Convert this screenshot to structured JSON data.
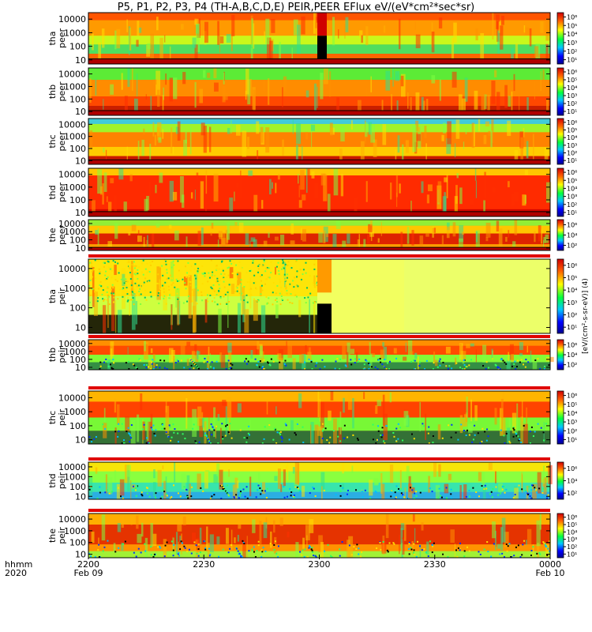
{
  "title": "P5, P1, P2, P3, P4 (TH-A,B,C,D,E) PEIR,PEER EFlux eV/(eV*cm²*sec*sr)",
  "colorbar_unit_label": "[eV/(cm²-s-sr-eV)] (4)",
  "time_axis": {
    "label_top": "hhmm",
    "label_bottom": "2020",
    "ticks": [
      "2200",
      "2230",
      "2300",
      "2330",
      "0000"
    ],
    "date_labels": [
      "Feb 09",
      "",
      "",
      "",
      "Feb 10"
    ]
  },
  "y_ticks": [
    "10",
    "100",
    "1000",
    "10000"
  ],
  "colorbar_ticks": [
    "10²",
    "10⁴",
    "10⁶"
  ],
  "colorbar_ticks_full": [
    "10¹",
    "10²",
    "10³",
    "10⁴",
    "10⁵",
    "10⁶"
  ],
  "panels": [
    {
      "probe": "tha",
      "species": "peer"
    },
    {
      "probe": "thb",
      "species": "peer"
    },
    {
      "probe": "thc",
      "species": "peer"
    },
    {
      "probe": "thd",
      "species": "peer"
    },
    {
      "probe": "the",
      "species": "peer"
    },
    {
      "probe": "tha",
      "species": "peir"
    },
    {
      "probe": "thb",
      "species": "peir"
    },
    {
      "probe": "thc",
      "species": "peir"
    },
    {
      "probe": "thd",
      "species": "peir"
    },
    {
      "probe": "the",
      "species": "peir"
    }
  ],
  "chart_data": {
    "type": "heatmap",
    "x_range": [
      "2020-02-09 22:00",
      "2020-02-10 00:00"
    ],
    "y_scale": "log",
    "y_range_eV": [
      5,
      30000
    ],
    "color_scale": "rainbow (blue → green → yellow → red)",
    "colors": {
      "low": "#0000ff",
      "mid_low": "#00ffff",
      "mid": "#00ff00",
      "mid_high": "#ffff00",
      "high": "#ff0000",
      "very_high": "#b40000"
    }
  }
}
